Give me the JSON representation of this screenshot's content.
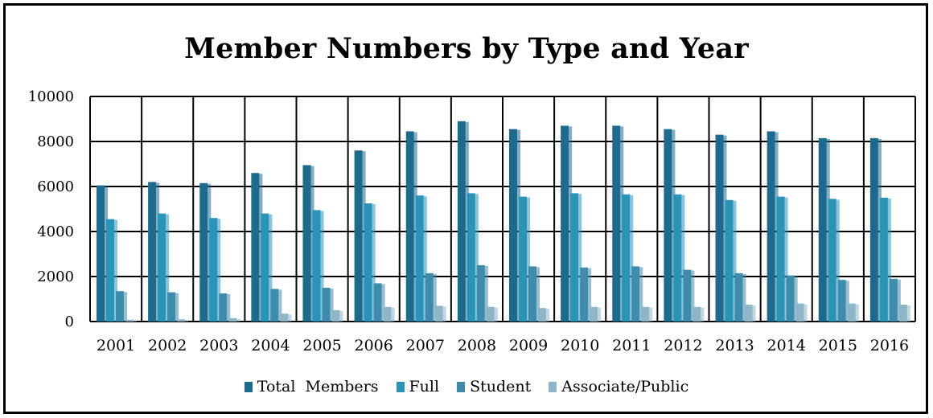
{
  "colors": {
    "series": [
      "#1d6a8f",
      "#2a94b8",
      "#3f8bab",
      "#8fb6c8"
    ],
    "grid": "#000000"
  },
  "chart_data": {
    "type": "bar",
    "title": "Member Numbers by Type and Year",
    "xlabel": "",
    "ylabel": "",
    "ylim": [
      0,
      10000
    ],
    "yticks": [
      0,
      2000,
      4000,
      6000,
      8000,
      10000
    ],
    "grid": true,
    "legend_position": "bottom",
    "categories": [
      "2001",
      "2002",
      "2003",
      "2004",
      "2005",
      "2006",
      "2007",
      "2008",
      "2009",
      "2010",
      "2011",
      "2012",
      "2013",
      "2014",
      "2015",
      "2016"
    ],
    "series": [
      {
        "name": "Total  Members",
        "values": [
          6050,
          6200,
          6150,
          6600,
          6950,
          7600,
          8450,
          8900,
          8550,
          8700,
          8700,
          8550,
          8300,
          8450,
          8150,
          8150
        ]
      },
      {
        "name": "Full",
        "values": [
          4550,
          4800,
          4600,
          4800,
          4950,
          5250,
          5600,
          5700,
          5550,
          5700,
          5650,
          5650,
          5400,
          5550,
          5450,
          5500
        ]
      },
      {
        "name": "Student",
        "values": [
          1350,
          1300,
          1250,
          1450,
          1500,
          1700,
          2150,
          2500,
          2450,
          2400,
          2450,
          2300,
          2150,
          2050,
          1850,
          1900
        ]
      },
      {
        "name": "Associate/Public",
        "values": [
          80,
          100,
          150,
          350,
          500,
          650,
          700,
          650,
          600,
          650,
          650,
          650,
          750,
          800,
          800,
          750
        ]
      }
    ]
  }
}
